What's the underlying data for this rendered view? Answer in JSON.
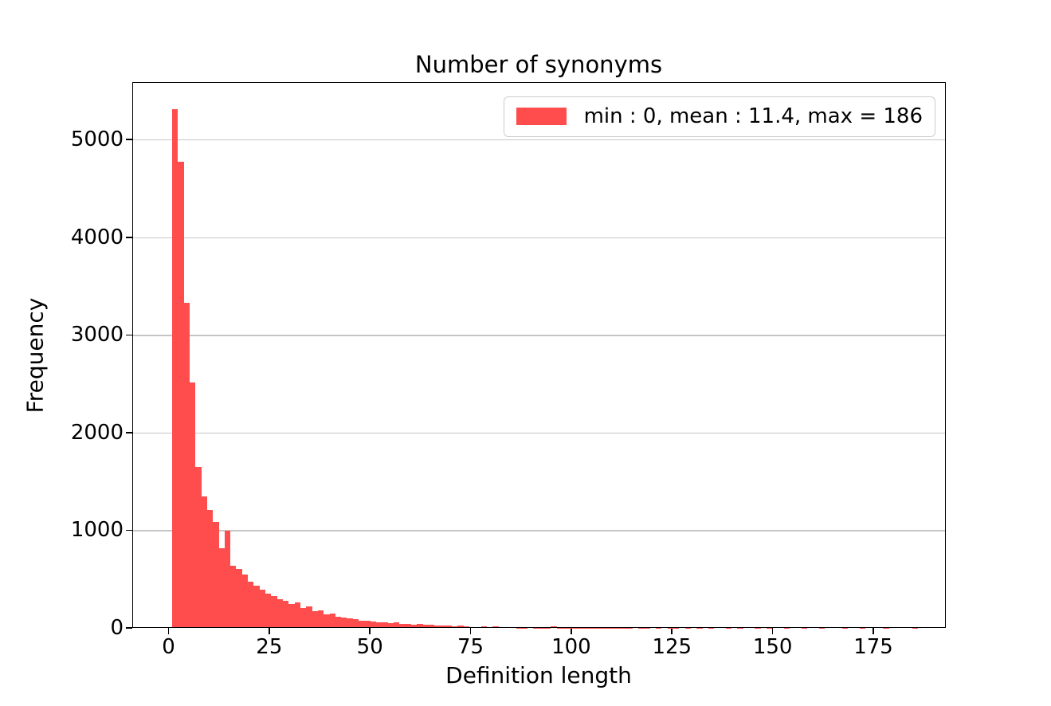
{
  "chart_data": {
    "type": "histogram",
    "title": "Number of synonyms",
    "xlabel": "Definition length",
    "ylabel": "Frequency",
    "legend": {
      "label": "min : 0, mean : 11.4, max = 186",
      "position": "upper right"
    },
    "stats": {
      "min": 0,
      "mean": 11.4,
      "max": 186
    },
    "colors": {
      "bar": "#ff4d4d",
      "grid": "#c6c6c6",
      "spine": "#000000",
      "background": "#ffffff",
      "legend_border": "#cccccc"
    },
    "grid": {
      "axis": "y",
      "on": true
    },
    "xlim": [
      -9,
      193
    ],
    "ylim": [
      0,
      5590
    ],
    "xticks": [
      0,
      25,
      50,
      75,
      100,
      125,
      150,
      175
    ],
    "yticks": [
      0,
      1000,
      2000,
      3000,
      4000,
      5000
    ],
    "bins": {
      "start": 0.9,
      "width": 1.447,
      "counts": [
        5310,
        4775,
        3330,
        2515,
        1650,
        1350,
        1210,
        1085,
        820,
        995,
        640,
        605,
        545,
        470,
        430,
        395,
        350,
        330,
        296,
        275,
        246,
        258,
        205,
        218,
        172,
        180,
        142,
        148,
        118,
        108,
        96,
        88,
        76,
        70,
        66,
        60,
        55,
        50,
        58,
        44,
        40,
        36,
        42,
        30,
        34,
        26,
        24,
        28,
        20,
        25,
        16,
        10,
        9,
        13,
        8,
        13,
        6,
        11,
        5,
        4,
        4,
        12,
        3,
        3,
        3,
        17,
        3,
        2,
        2,
        2,
        2,
        1,
        2,
        1,
        1,
        2,
        1,
        1,
        2,
        0,
        1,
        1,
        0,
        1,
        0,
        1,
        1,
        0,
        1,
        0,
        1,
        0,
        1,
        0,
        0,
        1,
        0,
        1,
        0,
        0,
        1,
        0,
        1,
        0,
        0,
        1,
        0,
        0,
        1,
        0,
        0,
        1,
        0,
        0,
        0,
        1,
        0,
        0,
        1,
        0,
        0,
        0,
        1,
        0,
        0,
        0,
        0,
        1
      ]
    }
  }
}
